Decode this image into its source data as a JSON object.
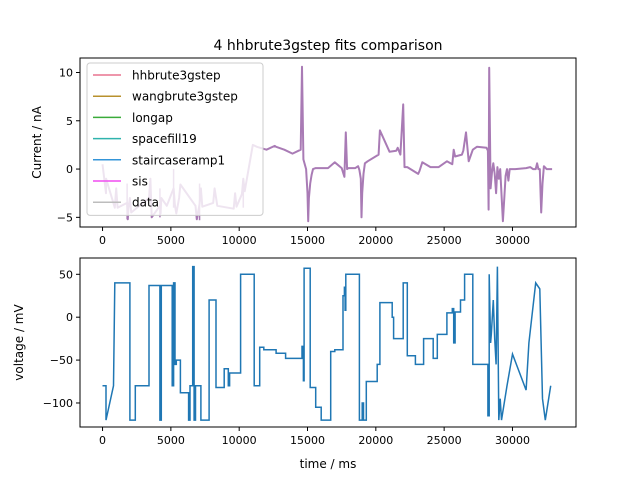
{
  "figure": {
    "title": "4 hhbrute3gstep fits comparison"
  },
  "chart_data": [
    {
      "type": "line",
      "title": "4 hhbrute3gstep fits comparison",
      "xlabel": "",
      "ylabel": "Current / nA",
      "xlim": [
        -1650,
        34650
      ],
      "ylim": [
        -6,
        11.5
      ],
      "x_ticks": [
        0,
        5000,
        10000,
        15000,
        20000,
        25000,
        30000
      ],
      "y_ticks": [
        -5,
        0,
        5,
        10
      ],
      "grid": false,
      "legend_position": "upper-left",
      "series": [
        {
          "name": "hhbrute3gstep",
          "color": "#e8738f"
        },
        {
          "name": "wangbrute3gstep",
          "color": "#b8912d"
        },
        {
          "name": "longap",
          "color": "#3aab3a"
        },
        {
          "name": "spacefill19",
          "color": "#2fb3ad"
        },
        {
          "name": "staircaseramp1",
          "color": "#3495d8"
        },
        {
          "name": "sis",
          "color": "#f04cf0"
        },
        {
          "name": "data",
          "color": "#bdbdbd"
        }
      ],
      "trace": {
        "color": "#a97bb5",
        "x": [
          0,
          250,
          260,
          900,
          1000,
          1100,
          1800,
          1850,
          1900,
          2000,
          2100,
          3400,
          3500,
          3600,
          4200,
          4250,
          4300,
          4700,
          5200,
          5300,
          5400,
          5600,
          5700,
          6800,
          6900,
          7000,
          7100,
          7200,
          7300,
          8100,
          8200,
          8400,
          9600,
          9700,
          9800,
          10200,
          10300,
          10400,
          11000,
          11300,
          12000,
          12600,
          12700,
          13300,
          13900,
          14500,
          14600,
          14700,
          14900,
          15000,
          15050,
          15100,
          15200,
          15300,
          15400,
          15600,
          16500,
          17000,
          17500,
          17700,
          17800,
          17900,
          18000,
          18500,
          18700,
          18800,
          18900,
          18950,
          19000,
          19100,
          19200,
          19400,
          20200,
          20300,
          21000,
          21500,
          21600,
          21800,
          22000,
          22100,
          22300,
          23100,
          23200,
          23400,
          24000,
          24600,
          25200,
          25600,
          25700,
          25800,
          26300,
          26400,
          26600,
          26800,
          27100,
          27400,
          28100,
          28200,
          28250,
          28300,
          28400,
          28500,
          28600,
          28700,
          28800,
          28900,
          29000,
          29100,
          29300,
          29400,
          29500,
          29600,
          29700,
          29800,
          30000,
          30200,
          31000,
          31300,
          31500,
          31700,
          31800,
          31900,
          32000,
          32100,
          32200,
          32300,
          32500,
          32900
        ],
        "y": [
          0.5,
          -2.5,
          -1.0,
          -4.0,
          -2.0,
          -4.0,
          -3.5,
          -5.2,
          -4.0,
          -3.0,
          -4.5,
          -3.0,
          -1.0,
          -5.0,
          -3.8,
          -4.6,
          -3.0,
          -3.8,
          -2.0,
          -3.8,
          -4.6,
          -3.0,
          -1.6,
          -3.8,
          -5.2,
          -4.4,
          -3.6,
          -2.0,
          -3.9,
          -3.5,
          -2.0,
          -3.8,
          -4.1,
          -2.5,
          -3.9,
          -2.6,
          -1.0,
          -2.3,
          2.5,
          2.3,
          2.0,
          2.4,
          2.3,
          2.0,
          1.6,
          2.0,
          10.6,
          1.0,
          0.0,
          -2.5,
          -5.4,
          -3.0,
          -1.5,
          -0.6,
          0.0,
          0.1,
          0.1,
          0.7,
          0.1,
          -0.8,
          3.8,
          0.0,
          0.1,
          0.1,
          0.3,
          -0.1,
          -1.0,
          -5.0,
          -2.5,
          -0.5,
          0.6,
          0.8,
          1.5,
          4.0,
          1.8,
          1.9,
          2.2,
          1.5,
          6.7,
          0.2,
          0.2,
          -0.5,
          -0.2,
          0.7,
          0.2,
          0.2,
          0.8,
          0.5,
          2.0,
          1.3,
          1.5,
          1.9,
          3.8,
          0.8,
          2.0,
          2.3,
          2.2,
          1.9,
          -4.2,
          10.5,
          -2.0,
          -0.3,
          0.6,
          -0.5,
          -2.5,
          0.2,
          -1.0,
          0.0,
          -5.4,
          -3.0,
          -0.7,
          0.0,
          -1.2,
          0.0,
          0.0,
          0.0,
          0.1,
          0.2,
          0.0,
          0.0,
          0.6,
          0.0,
          0.0,
          -4.5,
          -1.5,
          0.3,
          0.0,
          0.0
        ],
        "spikes": [
          {
            "x": 1800,
            "range": [
              -5.2,
              -1.5
            ]
          },
          {
            "x": 4200,
            "range": [
              -5.0,
              -2.0
            ]
          },
          {
            "x": 5200,
            "range": [
              -4.0,
              0.0
            ]
          },
          {
            "x": 7100,
            "range": [
              -5.3,
              -1.5
            ]
          },
          {
            "x": 10300,
            "range": [
              -4.0,
              -1.0
            ]
          }
        ]
      }
    },
    {
      "type": "line",
      "title": "",
      "xlabel": "time / ms",
      "ylabel": "voltage / mV",
      "xlim": [
        -1650,
        34650
      ],
      "ylim": [
        -128,
        69
      ],
      "x_ticks": [
        0,
        5000,
        10000,
        15000,
        20000,
        25000,
        30000
      ],
      "y_ticks": [
        -100,
        -50,
        0,
        50
      ],
      "grid": false,
      "series": [
        {
          "color": "#1f77b4",
          "x": [
            0,
            250,
            250,
            800,
            800,
            900,
            900,
            2000,
            2000,
            2400,
            2400,
            3400,
            3400,
            4200,
            4200,
            4300,
            4300,
            5100,
            5100,
            5200,
            5200,
            5300,
            5300,
            5400,
            5400,
            5700,
            5700,
            6300,
            6300,
            6400,
            6400,
            6600,
            6600,
            6700,
            6700,
            6800,
            6800,
            7200,
            7200,
            7800,
            7800,
            8300,
            8300,
            8900,
            8900,
            9200,
            9200,
            9300,
            9300,
            10100,
            10100,
            11100,
            11100,
            11500,
            11500,
            11800,
            11800,
            12700,
            12700,
            13400,
            13400,
            14600,
            14600,
            14700,
            14700,
            14750,
            14750,
            15200,
            15200,
            15600,
            15600,
            16000,
            16000,
            16700,
            16700,
            17000,
            17000,
            17600,
            17600,
            17700,
            17700,
            17750,
            17750,
            17800,
            17800,
            18800,
            18800,
            19000,
            19000,
            19100,
            19100,
            19300,
            19300,
            20100,
            20100,
            20300,
            20300,
            21200,
            21200,
            21300,
            21300,
            22000,
            22000,
            22300,
            22300,
            22900,
            22900,
            23500,
            23500,
            24200,
            24200,
            24500,
            24500,
            25200,
            25200,
            25600,
            25600,
            25700,
            25700,
            25800,
            25800,
            26200,
            26200,
            26500,
            26500,
            27100,
            27100,
            28200,
            28200,
            28300,
            28300,
            28400,
            28400,
            28450,
            28450,
            28600,
            28600,
            28700,
            28700,
            28800,
            28800,
            28900,
            28900,
            29000,
            29000,
            29100,
            29100,
            29200,
            29200,
            29600,
            29600,
            30000,
            30000,
            31000,
            31000,
            31200,
            31200,
            31700,
            31700,
            32000,
            32000,
            32200,
            32200,
            32400,
            32400,
            32800,
            32800
          ],
          "y": [
            -80,
            -80,
            -120,
            -80,
            -80,
            40,
            40,
            40,
            -120,
            -120,
            -80,
            -80,
            37,
            37,
            -120,
            -120,
            37,
            37,
            -80,
            -80,
            40,
            40,
            -55,
            -55,
            -50,
            -50,
            -88,
            -88,
            -120,
            -120,
            -80,
            -80,
            59,
            59,
            -120,
            -120,
            -80,
            -80,
            -120,
            -120,
            20,
            20,
            -82,
            -82,
            -60,
            -60,
            -80,
            -80,
            -65,
            -65,
            50,
            50,
            -80,
            -80,
            -35,
            -35,
            -38,
            -38,
            -42,
            -42,
            -48,
            -48,
            -34,
            -34,
            -74,
            -74,
            57,
            57,
            -82,
            -82,
            -105,
            -105,
            -120,
            -120,
            -40,
            -40,
            -38,
            -38,
            25,
            25,
            35,
            35,
            8,
            8,
            50,
            50,
            -120,
            -120,
            -100,
            -100,
            -120,
            -120,
            -75,
            -75,
            -55,
            -55,
            17,
            17,
            0,
            0,
            -25,
            -25,
            40,
            40,
            -45,
            -45,
            -55,
            -55,
            -25,
            -25,
            -48,
            -48,
            -20,
            -20,
            5,
            5,
            10,
            10,
            -30,
            -30,
            6,
            6,
            20,
            20,
            50,
            50,
            -55,
            -55,
            -115,
            -115,
            50,
            -30,
            -30,
            -20,
            -20,
            20,
            20,
            -25,
            -25,
            -55,
            -55,
            59,
            59,
            -120,
            -120,
            -95,
            -95,
            -120,
            -120,
            -80,
            -80,
            -43,
            -43,
            -85,
            -85,
            -30,
            -30,
            40,
            40,
            33,
            33,
            -95,
            -95,
            -120,
            -120,
            -80,
            -80
          ]
        }
      ]
    }
  ]
}
